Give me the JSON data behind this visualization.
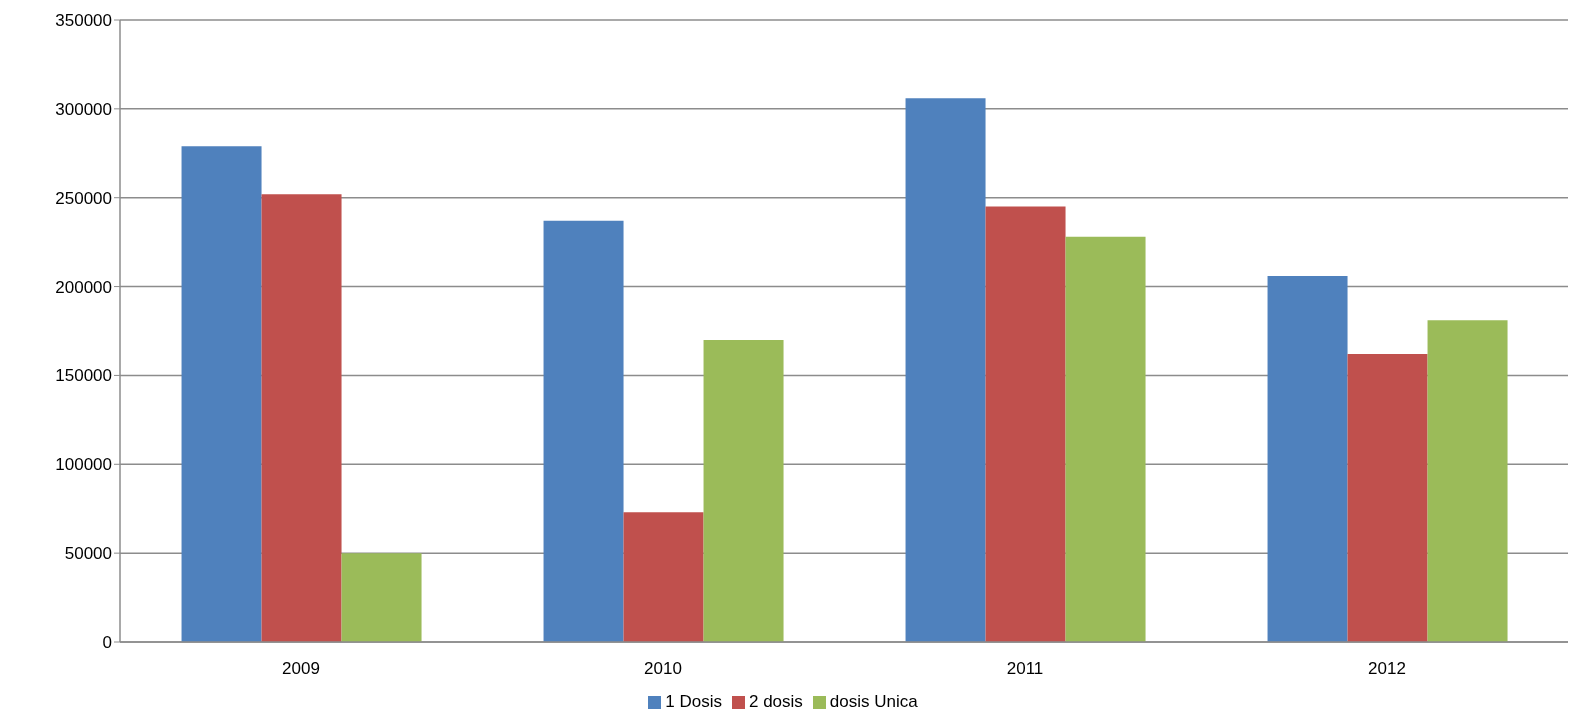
{
  "chart_data": {
    "type": "bar",
    "categories": [
      "2009",
      "2010",
      "2011",
      "2012"
    ],
    "series": [
      {
        "name": "1 Dosis",
        "color": "#4f81bd",
        "values": [
          279000,
          237000,
          306000,
          206000
        ]
      },
      {
        "name": "2 dosis",
        "color": "#c0504d",
        "values": [
          252000,
          73000,
          245000,
          162000
        ]
      },
      {
        "name": "dosis Unica",
        "color": "#9bbb59",
        "values": [
          50000,
          170000,
          228000,
          181000
        ]
      }
    ],
    "ylim": [
      0,
      350000
    ],
    "yticks": [
      0,
      50000,
      100000,
      150000,
      200000,
      250000,
      300000,
      350000
    ],
    "grid": "y",
    "legend": "bottom"
  }
}
